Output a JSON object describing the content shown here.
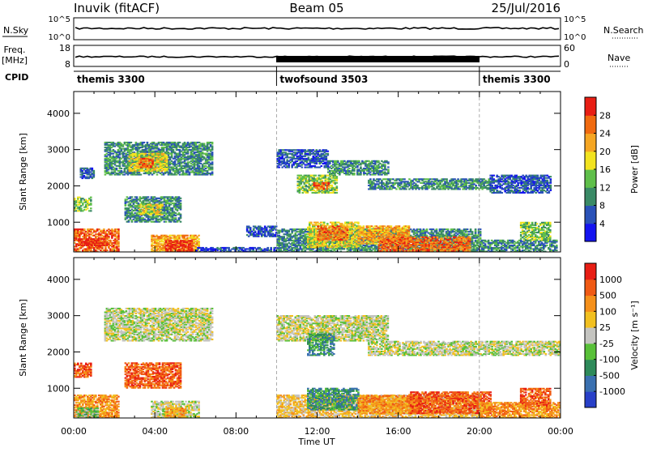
{
  "header": {
    "station": "Inuvik (fitACF)",
    "beam": "Beam 05",
    "date": "25/Jul/2016"
  },
  "panels": {
    "nsky": {
      "left_label": "N.Sky",
      "right_label": "N.Search",
      "left_ticks": [
        "10^5",
        "10^0"
      ],
      "right_ticks": [
        "10^5",
        "10^0"
      ]
    },
    "freq": {
      "left_label_1": "Freq.",
      "left_label_2": "[MHz]",
      "right_label": "Nave",
      "left_ticks": [
        "18",
        "8"
      ],
      "right_ticks": [
        "60",
        "0"
      ]
    },
    "cpid": {
      "label": "CPID",
      "segments": [
        {
          "name": "themis 3300",
          "start_hour": 0,
          "end_hour": 10
        },
        {
          "name": "twofsound 3503",
          "start_hour": 10,
          "end_hour": 20
        },
        {
          "name": "themis 3300",
          "start_hour": 20,
          "end_hour": 24
        }
      ]
    }
  },
  "xaxis": {
    "label": "Time UT",
    "ticks": [
      "00:00",
      "04:00",
      "08:00",
      "12:00",
      "16:00",
      "20:00",
      "00:00"
    ]
  },
  "chart_data": [
    {
      "type": "heatmap",
      "name": "power",
      "ylabel": "Slant Range [km]",
      "yticks": [
        "1000",
        "2000",
        "3000",
        "4000"
      ],
      "ylim": [
        180,
        4600
      ],
      "xlim_hours": [
        0,
        24
      ],
      "colorbar_label": "Power [dB]",
      "colorbar_ticks": [
        "4",
        "8",
        "12",
        "16",
        "20",
        "24",
        "28"
      ],
      "colorbar_colors": [
        "#1414f0",
        "#2a52b8",
        "#3a8a66",
        "#5fbf4a",
        "#f2e320",
        "#f5a623",
        "#f06a10",
        "#e81e14"
      ],
      "regions": [
        {
          "t0": 0.0,
          "t1": 2.2,
          "r0": 180,
          "r1": 800,
          "level": 6
        },
        {
          "t0": 0.2,
          "t1": 1.5,
          "r0": 350,
          "r1": 550,
          "level": 7
        },
        {
          "t0": 0.0,
          "t1": 0.8,
          "r0": 1300,
          "r1": 1700,
          "level": 3
        },
        {
          "t0": 0.3,
          "t1": 1.0,
          "r0": 2200,
          "r1": 2500,
          "level": 1
        },
        {
          "t0": 1.5,
          "t1": 6.8,
          "r0": 2300,
          "r1": 3200,
          "level": 2
        },
        {
          "t0": 2.7,
          "t1": 4.6,
          "r0": 2400,
          "r1": 2900,
          "level": 4
        },
        {
          "t0": 3.2,
          "t1": 3.9,
          "r0": 2500,
          "r1": 2750,
          "level": 6
        },
        {
          "t0": 2.5,
          "t1": 5.3,
          "r0": 1000,
          "r1": 1700,
          "level": 2
        },
        {
          "t0": 3.2,
          "t1": 4.4,
          "r0": 1200,
          "r1": 1500,
          "level": 4
        },
        {
          "t0": 3.8,
          "t1": 6.2,
          "r0": 180,
          "r1": 650,
          "level": 5
        },
        {
          "t0": 4.5,
          "t1": 5.8,
          "r0": 200,
          "r1": 500,
          "level": 7
        },
        {
          "t0": 6.0,
          "t1": 10.0,
          "r0": 180,
          "r1": 300,
          "level": 1
        },
        {
          "t0": 8.5,
          "t1": 10.0,
          "r0": 600,
          "r1": 900,
          "level": 1
        },
        {
          "t0": 10.0,
          "t1": 12.5,
          "r0": 2500,
          "r1": 3000,
          "level": 1
        },
        {
          "t0": 11.0,
          "t1": 13.0,
          "r0": 1800,
          "r1": 2300,
          "level": 3
        },
        {
          "t0": 11.8,
          "t1": 12.6,
          "r0": 1900,
          "r1": 2100,
          "level": 6
        },
        {
          "t0": 12.5,
          "t1": 15.5,
          "r0": 2300,
          "r1": 2700,
          "level": 2
        },
        {
          "t0": 14.5,
          "t1": 20.5,
          "r0": 1900,
          "r1": 2200,
          "level": 2
        },
        {
          "t0": 10.0,
          "t1": 20.0,
          "r0": 180,
          "r1": 800,
          "level": 2
        },
        {
          "t0": 11.5,
          "t1": 14.0,
          "r0": 300,
          "r1": 1000,
          "level": 4
        },
        {
          "t0": 12.0,
          "t1": 13.5,
          "r0": 500,
          "r1": 900,
          "level": 6
        },
        {
          "t0": 14.0,
          "t1": 16.5,
          "r0": 400,
          "r1": 900,
          "level": 5
        },
        {
          "t0": 15.0,
          "t1": 19.5,
          "r0": 200,
          "r1": 600,
          "level": 6
        },
        {
          "t0": 20.0,
          "t1": 23.8,
          "r0": 180,
          "r1": 500,
          "level": 2
        },
        {
          "t0": 20.5,
          "t1": 23.5,
          "r0": 1800,
          "r1": 2300,
          "level": 1
        },
        {
          "t0": 22.0,
          "t1": 23.5,
          "r0": 500,
          "r1": 1000,
          "level": 3
        }
      ]
    },
    {
      "type": "heatmap",
      "name": "velocity",
      "ylabel": "Slant Range [km]",
      "yticks": [
        "1000",
        "2000",
        "3000",
        "4000"
      ],
      "ylim": [
        180,
        4600
      ],
      "xlim_hours": [
        0,
        24
      ],
      "colorbar_label": "Velocity [m s⁻¹]",
      "colorbar_ticks": [
        "1000",
        "500",
        "100",
        "25",
        "-25",
        "-100",
        "-500",
        "-1000"
      ],
      "colorbar_colors": [
        "#2840c8",
        "#3a70b0",
        "#2e8a5a",
        "#58c038",
        "#c4c4c0",
        "#f2c020",
        "#f5901a",
        "#f05a14",
        "#e81e14"
      ],
      "regions": [
        {
          "t0": 0.0,
          "t1": 2.2,
          "r0": 180,
          "r1": 800,
          "level": 6
        },
        {
          "t0": 0.1,
          "t1": 1.2,
          "r0": 200,
          "r1": 450,
          "level": 3
        },
        {
          "t0": 0.0,
          "t1": 0.8,
          "r0": 1300,
          "r1": 1700,
          "level": 7
        },
        {
          "t0": 1.5,
          "t1": 6.8,
          "r0": 2300,
          "r1": 3200,
          "level": 4
        },
        {
          "t0": 2.5,
          "t1": 5.3,
          "r0": 1000,
          "r1": 1700,
          "level": 7
        },
        {
          "t0": 3.8,
          "t1": 6.2,
          "r0": 180,
          "r1": 650,
          "level": 4
        },
        {
          "t0": 4.5,
          "t1": 5.5,
          "r0": 200,
          "r1": 450,
          "level": 6
        },
        {
          "t0": 10.0,
          "t1": 15.5,
          "r0": 2300,
          "r1": 3000,
          "level": 4
        },
        {
          "t0": 11.5,
          "t1": 12.8,
          "r0": 1900,
          "r1": 2500,
          "level": 2
        },
        {
          "t0": 14.5,
          "t1": 24.0,
          "r0": 1900,
          "r1": 2300,
          "level": 4
        },
        {
          "t0": 10.0,
          "t1": 20.0,
          "r0": 180,
          "r1": 800,
          "level": 5
        },
        {
          "t0": 11.5,
          "t1": 14.0,
          "r0": 400,
          "r1": 1000,
          "level": 2
        },
        {
          "t0": 14.0,
          "t1": 17.0,
          "r0": 300,
          "r1": 800,
          "level": 6
        },
        {
          "t0": 16.5,
          "t1": 20.5,
          "r0": 300,
          "r1": 900,
          "level": 7
        },
        {
          "t0": 20.0,
          "t1": 24.0,
          "r0": 180,
          "r1": 600,
          "level": 6
        },
        {
          "t0": 22.0,
          "t1": 23.5,
          "r0": 500,
          "r1": 1000,
          "level": 7
        }
      ]
    }
  ]
}
